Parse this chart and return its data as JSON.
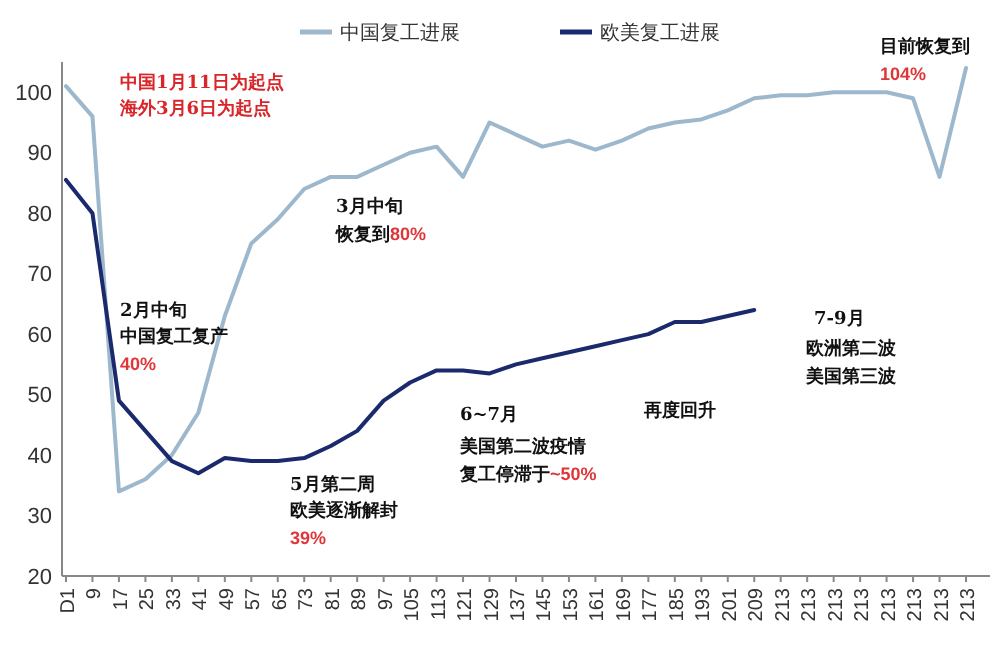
{
  "chart_data": {
    "type": "line",
    "categories": [
      "D1",
      "9",
      "17",
      "25",
      "33",
      "41",
      "49",
      "57",
      "65",
      "73",
      "81",
      "89",
      "97",
      "105",
      "113",
      "121",
      "129",
      "137",
      "145",
      "153",
      "161",
      "169",
      "177",
      "185",
      "193",
      "201",
      "209",
      "213",
      "213",
      "213",
      "213",
      "213",
      "213",
      "213",
      "213"
    ],
    "series": [
      {
        "name": "中国复工进展",
        "color": "#9db8cc",
        "values": [
          101,
          96,
          34,
          36,
          40,
          47,
          63,
          75,
          79,
          84,
          86,
          86,
          88,
          90,
          91,
          86,
          95,
          93,
          91,
          92,
          90.5,
          92,
          94,
          95,
          95.5,
          97,
          99,
          99.5,
          99.5,
          100,
          100,
          100,
          99,
          86,
          104
        ]
      },
      {
        "name": "欧美复工进展",
        "color": "#1a2a6c",
        "values": [
          85.5,
          80,
          49,
          44,
          39,
          37,
          39.5,
          39,
          39,
          39.5,
          41.5,
          44,
          49,
          52,
          54,
          54,
          53.5,
          55,
          56,
          57,
          58,
          59,
          60,
          62,
          62,
          63,
          64,
          null,
          null,
          null,
          null,
          null,
          null,
          null,
          null
        ]
      }
    ],
    "ylim": [
      20,
      105
    ],
    "yticks": [
      20,
      30,
      40,
      50,
      60,
      70,
      80,
      90,
      100
    ],
    "grid": false,
    "legend": "top",
    "marker": "none",
    "line_style": "solid",
    "annotations": [
      "中国1月11日为起点",
      "海外3月6日为起点",
      "3月中旬",
      "恢复到80%",
      "2月中旬",
      "中国复工复产",
      "40%",
      "5月第二周",
      "欧美逐渐解封",
      "39%",
      "6~7月",
      "美国第二波疫情",
      "复工停滞于~50%",
      "再度回升",
      "7-9月",
      "欧洲第二波",
      "美国第三波",
      "目前恢复到",
      "104%"
    ]
  }
}
